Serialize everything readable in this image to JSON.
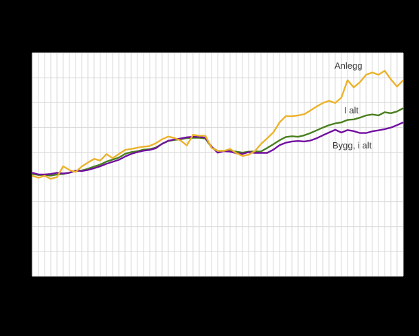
{
  "page": {
    "background_color": "#000000",
    "plot_background_color": "#ffffff",
    "gridline_color": "#d8d8d8",
    "label_color": "#383838"
  },
  "chart_data": {
    "type": "line",
    "title": "",
    "xlabel": "",
    "ylabel": "",
    "grid": true,
    "legend_position": "inline-labels-right",
    "x_axis_tick_labels_visible": false,
    "y_axis_tick_labels_visible": false,
    "ylim": [
      60,
      150
    ],
    "y_grid_step": 10,
    "x": [
      0,
      1,
      2,
      3,
      4,
      5,
      6,
      7,
      8,
      9,
      10,
      11,
      12,
      13,
      14,
      15,
      16,
      17,
      18,
      19,
      20,
      21,
      22,
      23,
      24,
      25,
      26,
      27,
      28,
      29,
      30,
      31,
      32,
      33,
      34,
      35,
      36,
      37,
      38,
      39,
      40,
      41,
      42,
      43,
      44,
      45,
      46,
      47,
      48,
      49,
      50,
      51,
      52,
      53,
      54,
      55,
      56,
      57,
      58,
      59,
      60
    ],
    "series": [
      {
        "name": "Anlegg",
        "color": "#ecb22a",
        "values": [
          100.5,
          99.7,
          100.5,
          99.2,
          100.0,
          104.3,
          102.8,
          102.0,
          104.2,
          105.8,
          107.3,
          106.6,
          109.2,
          107.6,
          109.2,
          110.9,
          111.3,
          111.8,
          112.2,
          112.5,
          113.6,
          115.2,
          116.3,
          115.7,
          114.7,
          112.7,
          117.0,
          116.6,
          116.6,
          111.7,
          110.5,
          110.5,
          111.3,
          109.6,
          108.5,
          109.0,
          110.4,
          113.3,
          115.6,
          118.0,
          122.0,
          124.5,
          124.5,
          124.8,
          125.3,
          126.8,
          128.4,
          129.8,
          130.7,
          129.8,
          132.0,
          139.0,
          136.1,
          138.2,
          141.2,
          142.1,
          141.2,
          142.8,
          139.4,
          136.4,
          139.0
        ]
      },
      {
        "name": "I alt",
        "color": "#487f1e",
        "values": [
          101.2,
          100.8,
          100.8,
          100.6,
          101.0,
          101.2,
          101.7,
          102.4,
          102.6,
          103.3,
          104.2,
          105.0,
          106.2,
          107.0,
          107.8,
          109.3,
          110.0,
          110.4,
          111.0,
          111.2,
          111.9,
          113.3,
          114.5,
          114.9,
          115.2,
          115.7,
          115.8,
          115.8,
          115.5,
          111.9,
          110.5,
          110.5,
          110.5,
          110.2,
          109.8,
          110.2,
          110.3,
          110.3,
          111.7,
          113.2,
          114.8,
          116.1,
          116.4,
          116.2,
          116.8,
          117.7,
          118.8,
          119.9,
          120.9,
          121.6,
          122.0,
          123.0,
          123.2,
          123.9,
          124.8,
          125.2,
          124.8,
          126.1,
          125.7,
          126.4,
          127.7
        ]
      },
      {
        "name": "Bygg, i alt",
        "color": "#720fa0",
        "values": [
          101.7,
          101.0,
          101.0,
          101.2,
          101.7,
          101.4,
          101.7,
          102.6,
          102.4,
          102.8,
          103.5,
          104.3,
          105.3,
          106.1,
          106.9,
          108.2,
          109.3,
          110.0,
          110.6,
          110.9,
          111.6,
          113.4,
          114.6,
          115.1,
          115.5,
          116.0,
          116.2,
          116.2,
          115.8,
          112.2,
          109.8,
          110.4,
          110.2,
          109.6,
          109.3,
          110.0,
          109.7,
          109.7,
          109.7,
          111.0,
          112.8,
          113.8,
          114.3,
          114.5,
          114.3,
          114.7,
          115.6,
          116.8,
          117.9,
          119.0,
          117.9,
          118.9,
          118.5,
          117.7,
          117.7,
          118.4,
          118.8,
          119.3,
          119.9,
          120.9,
          122.0
        ]
      }
    ]
  }
}
